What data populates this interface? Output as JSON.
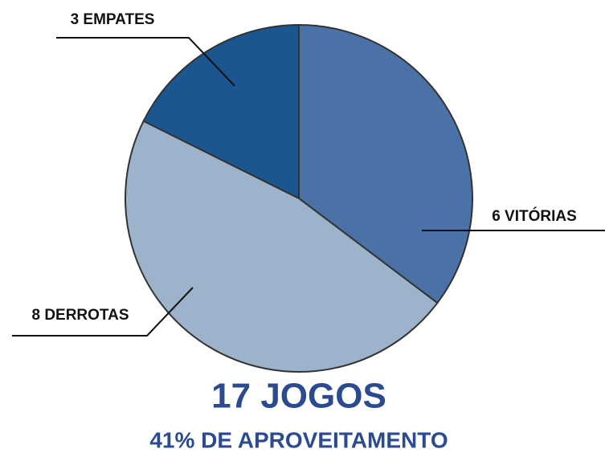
{
  "chart_data": {
    "type": "pie",
    "title": "17 JOGOS",
    "subtitle": "41% DE APROVEITAMENTO",
    "values": [
      6,
      8,
      3
    ],
    "value_labels": [
      "6 VITÓRIAS",
      "8 DERROTAS",
      "3 EMPATES"
    ],
    "colors": [
      "#4a72a6",
      "#9db3cc",
      "#1b5690"
    ]
  }
}
